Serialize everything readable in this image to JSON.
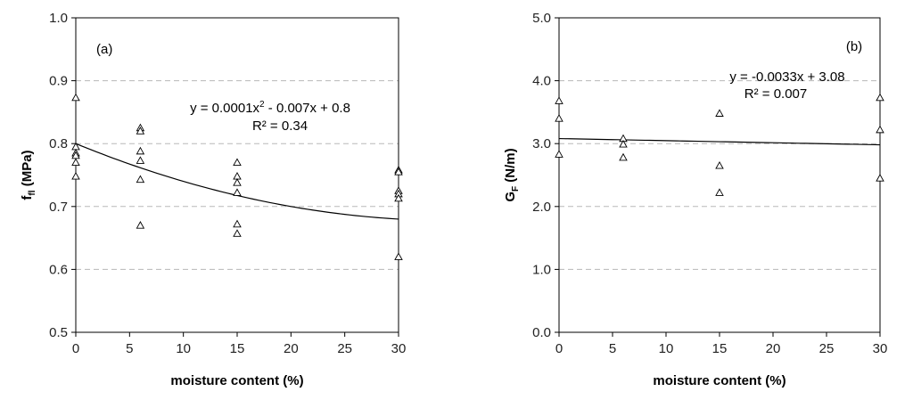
{
  "chart_data": [
    {
      "type": "scatter",
      "panel_label": "(a)",
      "xlabel": "moisture content (%)",
      "ylabel_main": "f",
      "ylabel_sub": "fl",
      "ylabel_rest": " (MPa)",
      "xlim": [
        0,
        30
      ],
      "ylim": [
        0.5,
        1.0
      ],
      "x_ticks": [
        "0",
        "5",
        "10",
        "15",
        "20",
        "25",
        "30"
      ],
      "y_ticks": [
        "0.5",
        "0.6",
        "0.7",
        "0.8",
        "0.9",
        "1.0"
      ],
      "grid": "horizontal dashed",
      "points": [
        {
          "x": 0,
          "y": 0.873
        },
        {
          "x": 0,
          "y": 0.795
        },
        {
          "x": 0,
          "y": 0.785
        },
        {
          "x": 0,
          "y": 0.781
        },
        {
          "x": 0,
          "y": 0.77
        },
        {
          "x": 0,
          "y": 0.748
        },
        {
          "x": 6,
          "y": 0.825
        },
        {
          "x": 6,
          "y": 0.82
        },
        {
          "x": 6,
          "y": 0.788
        },
        {
          "x": 6,
          "y": 0.773
        },
        {
          "x": 6,
          "y": 0.743
        },
        {
          "x": 6,
          "y": 0.67
        },
        {
          "x": 15,
          "y": 0.77
        },
        {
          "x": 15,
          "y": 0.748
        },
        {
          "x": 15,
          "y": 0.738
        },
        {
          "x": 15,
          "y": 0.722
        },
        {
          "x": 15,
          "y": 0.672
        },
        {
          "x": 15,
          "y": 0.657
        },
        {
          "x": 30,
          "y": 0.758
        },
        {
          "x": 30,
          "y": 0.755
        },
        {
          "x": 30,
          "y": 0.725
        },
        {
          "x": 30,
          "y": 0.72
        },
        {
          "x": 30,
          "y": 0.713
        },
        {
          "x": 30,
          "y": 0.62
        }
      ],
      "trendline": {
        "type": "polynomial",
        "coefficients": [
          0.8,
          -0.007,
          0.0001
        ]
      },
      "equation_pre": "y = 0.0001x",
      "equation_sup": "2",
      "equation_post": " - 0.007x + 0.8",
      "r2": "R² = 0.34"
    },
    {
      "type": "scatter",
      "panel_label": "(b)",
      "xlabel": "moisture content (%)",
      "ylabel_main": "G",
      "ylabel_sub": "F",
      "ylabel_rest": " (N/m)",
      "xlim": [
        0,
        30
      ],
      "ylim": [
        0.0,
        5.0
      ],
      "x_ticks": [
        "0",
        "5",
        "10",
        "15",
        "20",
        "25",
        "30"
      ],
      "y_ticks": [
        "0.0",
        "1.0",
        "2.0",
        "3.0",
        "4.0",
        "5.0"
      ],
      "grid": "horizontal dashed",
      "points": [
        {
          "x": 0,
          "y": 3.68
        },
        {
          "x": 0,
          "y": 3.4
        },
        {
          "x": 0,
          "y": 2.83
        },
        {
          "x": 6,
          "y": 3.08
        },
        {
          "x": 6,
          "y": 2.99
        },
        {
          "x": 6,
          "y": 2.78
        },
        {
          "x": 15,
          "y": 3.48
        },
        {
          "x": 15,
          "y": 2.65
        },
        {
          "x": 15,
          "y": 2.22
        },
        {
          "x": 30,
          "y": 3.73
        },
        {
          "x": 30,
          "y": 3.22
        },
        {
          "x": 30,
          "y": 2.45
        }
      ],
      "trendline": {
        "type": "linear",
        "coefficients": [
          3.08,
          -0.0033
        ]
      },
      "equation_pre": "y = -0.0033x + 3.08",
      "equation_sup": "",
      "equation_post": "",
      "r2": "R² = 0.007"
    }
  ]
}
